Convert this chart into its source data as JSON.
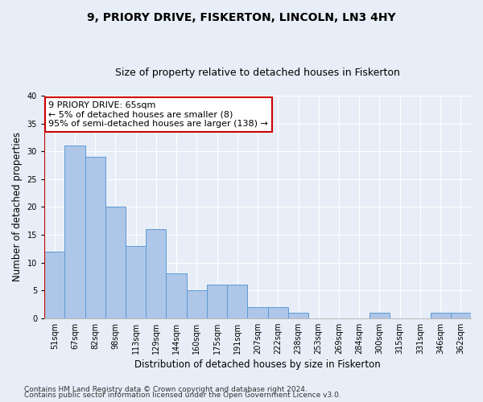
{
  "title": "9, PRIORY DRIVE, FISKERTON, LINCOLN, LN3 4HY",
  "subtitle": "Size of property relative to detached houses in Fiskerton",
  "xlabel": "Distribution of detached houses by size in Fiskerton",
  "ylabel": "Number of detached properties",
  "categories": [
    "51sqm",
    "67sqm",
    "82sqm",
    "98sqm",
    "113sqm",
    "129sqm",
    "144sqm",
    "160sqm",
    "175sqm",
    "191sqm",
    "207sqm",
    "222sqm",
    "238sqm",
    "253sqm",
    "269sqm",
    "284sqm",
    "300sqm",
    "315sqm",
    "331sqm",
    "346sqm",
    "362sqm"
  ],
  "values": [
    12,
    31,
    29,
    20,
    13,
    16,
    8,
    5,
    6,
    6,
    2,
    2,
    1,
    0,
    0,
    0,
    1,
    0,
    0,
    1,
    1
  ],
  "bar_color": "#aec6e8",
  "bar_edge_color": "#5b9bd5",
  "ylim": [
    0,
    40
  ],
  "yticks": [
    0,
    5,
    10,
    15,
    20,
    25,
    30,
    35,
    40
  ],
  "highlight_color": "#cc0000",
  "annotation_line1": "9 PRIORY DRIVE: 65sqm",
  "annotation_line2": "← 5% of detached houses are smaller (8)",
  "annotation_line3": "95% of semi-detached houses are larger (138) →",
  "annotation_box_color": "#ffffff",
  "annotation_box_edge": "#cc0000",
  "footer1": "Contains HM Land Registry data © Crown copyright and database right 2024.",
  "footer2": "Contains public sector information licensed under the Open Government Licence v3.0.",
  "background_color": "#e8eef7",
  "plot_background": "#e8eef7",
  "grid_color": "#ffffff",
  "title_fontsize": 10,
  "subtitle_fontsize": 9,
  "axis_label_fontsize": 8.5,
  "tick_fontsize": 7,
  "footer_fontsize": 6.5,
  "annotation_fontsize": 8
}
